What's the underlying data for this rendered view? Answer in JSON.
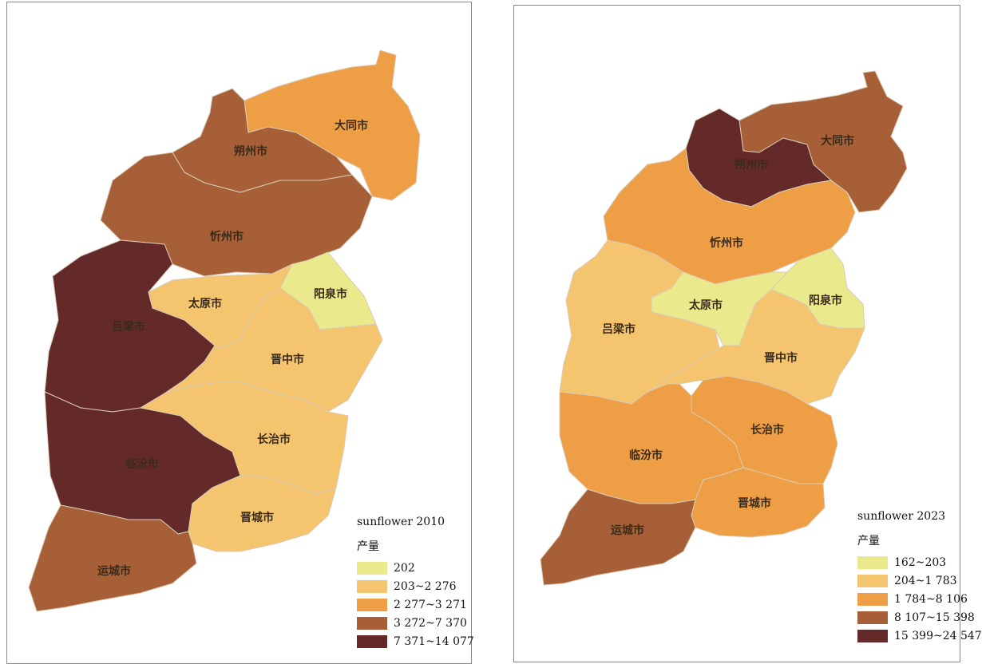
{
  "maps": [
    {
      "legend_title": "sunflower 2010",
      "legend_unit": "产量",
      "classes": [
        {
          "label": "202",
          "color": "#eaea8c"
        },
        {
          "label": "203~2 276",
          "color": "#f4c46e"
        },
        {
          "label": "2 277~3 271",
          "color": "#ee9f45"
        },
        {
          "label": "3 272~7 370",
          "color": "#a65f36"
        },
        {
          "label": "7 371~14 077",
          "color": "#642a2a"
        }
      ],
      "cities": [
        {
          "name": "大同市",
          "class": 2
        },
        {
          "name": "朔州市",
          "class": 3
        },
        {
          "name": "忻州市",
          "class": 3
        },
        {
          "name": "吕梁市",
          "class": 4
        },
        {
          "name": "太原市",
          "class": 1
        },
        {
          "name": "阳泉市",
          "class": 0
        },
        {
          "name": "晋中市",
          "class": 1
        },
        {
          "name": "长治市",
          "class": 1
        },
        {
          "name": "临汾市",
          "class": 4
        },
        {
          "name": "晋城市",
          "class": 1
        },
        {
          "name": "运城市",
          "class": 3
        }
      ]
    },
    {
      "legend_title": "sunflower 2023",
      "legend_unit": "产量",
      "classes": [
        {
          "label": "162~203",
          "color": "#eaea8c"
        },
        {
          "label": "204~1 783",
          "color": "#f4c46e"
        },
        {
          "label": "1 784~8 106",
          "color": "#ee9f45"
        },
        {
          "label": "8 107~15 398",
          "color": "#a65f36"
        },
        {
          "label": "15 399~24 547",
          "color": "#642a2a"
        }
      ],
      "cities": [
        {
          "name": "大同市",
          "class": 3
        },
        {
          "name": "朔州市",
          "class": 4
        },
        {
          "name": "忻州市",
          "class": 2
        },
        {
          "name": "吕梁市",
          "class": 1
        },
        {
          "name": "太原市",
          "class": 0
        },
        {
          "name": "阳泉市",
          "class": 0
        },
        {
          "name": "晋中市",
          "class": 1
        },
        {
          "name": "长治市",
          "class": 2
        },
        {
          "name": "临汾市",
          "class": 2
        },
        {
          "name": "晋城市",
          "class": 2
        },
        {
          "name": "运城市",
          "class": 3
        }
      ]
    }
  ]
}
